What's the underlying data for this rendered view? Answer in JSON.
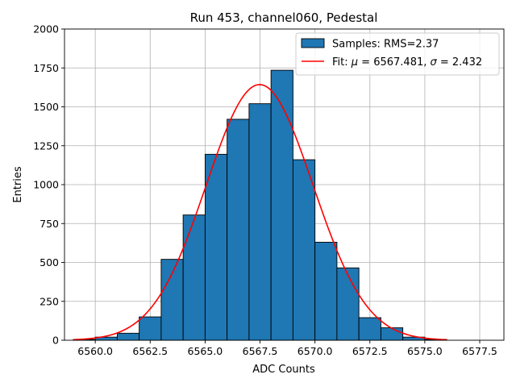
{
  "chart_data": {
    "type": "bar",
    "title": "Run 453, channel060, Pedestal",
    "xlabel": "ADC Counts",
    "ylabel": "Entries",
    "xlim": [
      6558.6,
      6578.6
    ],
    "ylim": [
      0,
      2000
    ],
    "xticks": [
      "6560.0",
      "6562.5",
      "6565.0",
      "6567.5",
      "6570.0",
      "6572.5",
      "6575.0",
      "6577.5"
    ],
    "xtick_values": [
      6560.0,
      6562.5,
      6565.0,
      6567.5,
      6570.0,
      6572.5,
      6575.0,
      6577.5
    ],
    "yticks": [
      "0",
      "250",
      "500",
      "750",
      "1000",
      "1250",
      "1500",
      "1750",
      "2000"
    ],
    "ytick_values": [
      0,
      250,
      500,
      750,
      1000,
      1250,
      1500,
      1750,
      2000
    ],
    "grid": true,
    "legend_position": "top-right",
    "bins": [
      {
        "left": 6559.0,
        "right": 6560.0,
        "value": 5
      },
      {
        "left": 6560.0,
        "right": 6561.0,
        "value": 20
      },
      {
        "left": 6561.0,
        "right": 6562.0,
        "value": 45
      },
      {
        "left": 6562.0,
        "right": 6563.0,
        "value": 150
      },
      {
        "left": 6563.0,
        "right": 6564.0,
        "value": 520
      },
      {
        "left": 6564.0,
        "right": 6565.0,
        "value": 805
      },
      {
        "left": 6565.0,
        "right": 6566.0,
        "value": 1195
      },
      {
        "left": 6566.0,
        "right": 6567.0,
        "value": 1420
      },
      {
        "left": 6567.0,
        "right": 6568.0,
        "value": 1520
      },
      {
        "left": 6568.0,
        "right": 6569.0,
        "value": 1735
      },
      {
        "left": 6569.0,
        "right": 6570.0,
        "value": 1160
      },
      {
        "left": 6570.0,
        "right": 6571.0,
        "value": 630
      },
      {
        "left": 6571.0,
        "right": 6572.0,
        "value": 465
      },
      {
        "left": 6572.0,
        "right": 6573.0,
        "value": 145
      },
      {
        "left": 6573.0,
        "right": 6574.0,
        "value": 80
      },
      {
        "left": 6574.0,
        "right": 6575.0,
        "value": 20
      },
      {
        "left": 6575.0,
        "right": 6576.0,
        "value": 5
      }
    ],
    "fit": {
      "mu": 6567.481,
      "sigma": 2.432,
      "amplitude": 1643,
      "x_range": [
        6559.0,
        6576.0
      ]
    },
    "series": [
      {
        "name": "Samples: RMS=2.37",
        "kind": "histogram",
        "color": "#1f77b4"
      },
      {
        "name": "Fit: μ = 6567.481, σ = 2.432",
        "kind": "line",
        "color": "#ff0000"
      }
    ],
    "legend": {
      "hist_prefix": "Samples: RMS=2.37",
      "fit_prefix": "Fit: ",
      "mu_symbol": "μ",
      "mu_value": " = 6567.481, ",
      "sigma_symbol": "σ",
      "sigma_value": " = 2.432"
    }
  }
}
